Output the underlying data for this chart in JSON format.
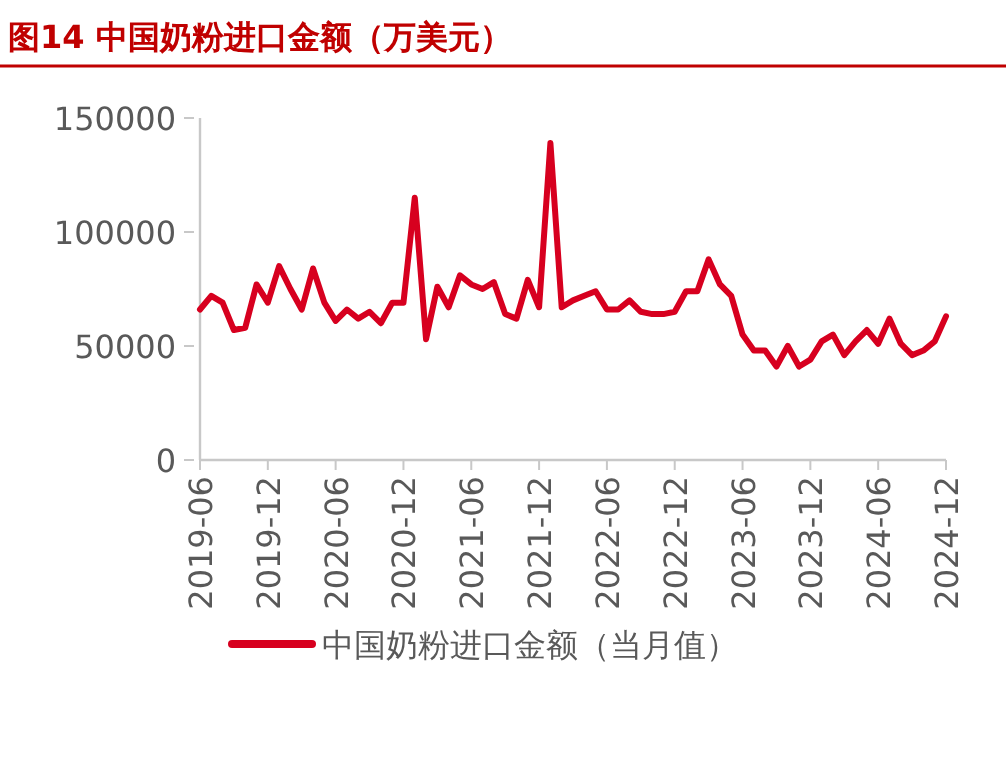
{
  "chart_data": {
    "type": "line",
    "title": "图14  中国奶粉进口金额（万美元）",
    "x": [
      "2019-06",
      "2019-07",
      "2019-08",
      "2019-09",
      "2019-10",
      "2019-11",
      "2019-12",
      "2020-01",
      "2020-02",
      "2020-03",
      "2020-04",
      "2020-05",
      "2020-06",
      "2020-07",
      "2020-08",
      "2020-09",
      "2020-10",
      "2020-11",
      "2020-12",
      "2021-01",
      "2021-02",
      "2021-03",
      "2021-04",
      "2021-05",
      "2021-06",
      "2021-07",
      "2021-08",
      "2021-09",
      "2021-10",
      "2021-11",
      "2021-12",
      "2022-01",
      "2022-02",
      "2022-03",
      "2022-04",
      "2022-05",
      "2022-06",
      "2022-07",
      "2022-08",
      "2022-09",
      "2022-10",
      "2022-11",
      "2022-12",
      "2023-01",
      "2023-02",
      "2023-03",
      "2023-04",
      "2023-05",
      "2023-06",
      "2023-07",
      "2023-08",
      "2023-09",
      "2023-10",
      "2023-11",
      "2023-12",
      "2024-01",
      "2024-02",
      "2024-03",
      "2024-04",
      "2024-05",
      "2024-06",
      "2024-07",
      "2024-08",
      "2024-09",
      "2024-10",
      "2024-11",
      "2024-12"
    ],
    "series": [
      {
        "name": "中国奶粉进口金额（当月值）",
        "color": "#d7001f",
        "values": [
          66000,
          72000,
          69000,
          57000,
          58000,
          77000,
          69000,
          85000,
          75000,
          66000,
          84000,
          69000,
          61000,
          66000,
          62000,
          65000,
          60000,
          69000,
          69000,
          115000,
          53000,
          76000,
          67000,
          81000,
          77000,
          75000,
          78000,
          64000,
          62000,
          79000,
          67000,
          139000,
          67000,
          70000,
          72000,
          74000,
          66000,
          66000,
          70000,
          65000,
          64000,
          64000,
          65000,
          74000,
          74000,
          88000,
          77000,
          72000,
          55000,
          48000,
          48000,
          41000,
          50000,
          41000,
          44000,
          52000,
          55000,
          46000,
          52000,
          57000,
          51000,
          62000,
          51000,
          46000,
          48000,
          52000,
          63000
        ]
      }
    ],
    "xlim": [
      "2019-06",
      "2024-12"
    ],
    "xticks": [
      "2019-06",
      "2019-12",
      "2020-06",
      "2020-12",
      "2021-06",
      "2021-12",
      "2022-06",
      "2022-12",
      "2023-06",
      "2023-12",
      "2024-06",
      "2024-12"
    ],
    "ylim": [
      0,
      150000
    ],
    "yticks": [
      0,
      50000,
      100000,
      150000
    ],
    "legend": "bottom",
    "line_style": "solid",
    "marker": "none"
  }
}
